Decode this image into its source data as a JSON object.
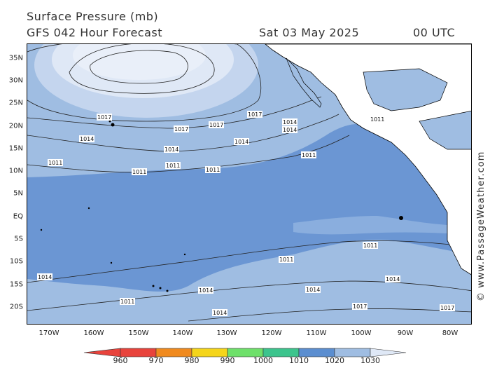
{
  "header": {
    "title": "Surface Pressure (mb)",
    "subtitle": "GFS 042 Hour Forecast",
    "date": "Sat 03 May 2025",
    "time": "00 UTC"
  },
  "credit": "© www.PassageWeather.com",
  "axes": {
    "latitude_labels": [
      "35N",
      "30N",
      "25N",
      "20N",
      "15N",
      "10N",
      "5N",
      "EQ",
      "5S",
      "10S",
      "15S",
      "20S"
    ],
    "longitude_labels": [
      "170W",
      "160W",
      "150W",
      "140W",
      "130W",
      "120W",
      "110W",
      "100W",
      "90W",
      "80W"
    ]
  },
  "colorbar": {
    "labels": [
      "960",
      "970",
      "980",
      "990",
      "1000",
      "1010",
      "1020",
      "1030"
    ],
    "colors": [
      "#e8433c",
      "#f08a1e",
      "#f5d51a",
      "#6ee06a",
      "#3cc48d",
      "#5b8ed0",
      "#9fbde2",
      "#dfe8f6"
    ]
  },
  "map": {
    "region": "Eastern Pacific Ocean",
    "fills": {
      "band_1008_1011": "#6b96d3",
      "band_1011_1020": "#9fbde2",
      "band_1020_1030": "#dfe8f6",
      "land": "#ffffff"
    },
    "isobar_labels": [
      {
        "text": "1017"
      },
      {
        "text": "1017"
      },
      {
        "text": "1017"
      },
      {
        "text": "1017"
      },
      {
        "text": "1014"
      },
      {
        "text": "1014"
      },
      {
        "text": "1014"
      },
      {
        "text": "1014"
      },
      {
        "text": "1014"
      },
      {
        "text": "1011"
      },
      {
        "text": "1011"
      },
      {
        "text": "1011"
      },
      {
        "text": "1011"
      },
      {
        "text": "1011"
      },
      {
        "text": "1011"
      },
      {
        "text": "1011"
      },
      {
        "text": "1011"
      },
      {
        "text": "1014"
      },
      {
        "text": "1014"
      },
      {
        "text": "1014"
      },
      {
        "text": "1017"
      },
      {
        "text": "1017"
      },
      {
        "text": "1014"
      },
      {
        "text": "1014"
      },
      {
        "text": "1011"
      }
    ]
  }
}
